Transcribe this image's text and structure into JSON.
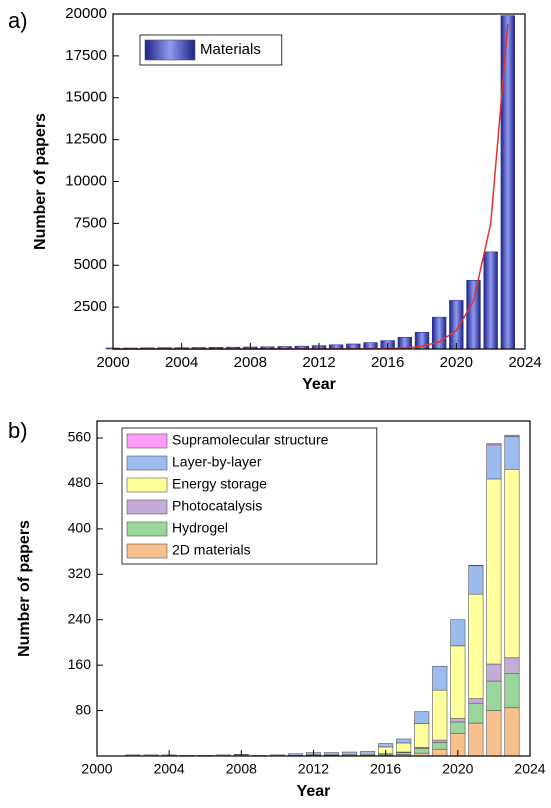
{
  "chart_data": [
    {
      "type": "bar",
      "panel_label": "a)",
      "x_label": "Year",
      "y_label": "Number of papers",
      "x": [
        2000,
        2001,
        2002,
        2003,
        2004,
        2005,
        2006,
        2007,
        2008,
        2009,
        2010,
        2011,
        2012,
        2013,
        2014,
        2015,
        2016,
        2017,
        2018,
        2019,
        2020,
        2021,
        2022,
        2023
      ],
      "series": [
        {
          "name": "Materials",
          "color": "#2b2f9e",
          "values": [
            60,
            60,
            70,
            80,
            80,
            90,
            100,
            110,
            120,
            130,
            150,
            170,
            200,
            250,
            300,
            380,
            500,
            700,
            1000,
            1900,
            2900,
            4100,
            5800,
            19900
          ]
        },
        {
          "type": "line",
          "color": "#e8312f",
          "values": [
            0,
            0,
            0,
            0,
            0,
            0,
            0,
            0,
            0,
            0,
            0,
            1,
            1,
            2,
            4,
            9,
            24,
            63,
            165,
            425,
            1100,
            2870,
            7460,
            19400
          ]
        }
      ],
      "xlim": [
        2000,
        2024
      ],
      "xticks": [
        2000,
        2004,
        2008,
        2012,
        2016,
        2020,
        2024
      ],
      "ylim": [
        0,
        20000
      ],
      "yticks": [
        2500,
        5000,
        7500,
        10000,
        12500,
        15000,
        17500,
        20000
      ]
    },
    {
      "type": "stacked_bar",
      "panel_label": "b)",
      "x_label": "Year",
      "y_label": "Number of papers",
      "x": [
        2002,
        2003,
        2004,
        2005,
        2006,
        2007,
        2008,
        2009,
        2010,
        2011,
        2012,
        2013,
        2014,
        2015,
        2016,
        2017,
        2018,
        2019,
        2020,
        2021,
        2022,
        2023
      ],
      "series": [
        {
          "name": "2D materials",
          "color": "#f8c08c",
          "values": [
            0,
            0,
            0,
            0,
            0,
            0,
            0,
            0,
            0,
            0,
            0,
            0,
            0,
            0,
            2,
            3,
            5,
            12,
            40,
            58,
            80,
            85
          ]
        },
        {
          "name": "Hydrogel",
          "color": "#9ad69a",
          "values": [
            0,
            0,
            0,
            0,
            0,
            0,
            0,
            0,
            0,
            0,
            1,
            1,
            1,
            1,
            2,
            3,
            8,
            12,
            20,
            35,
            52,
            60
          ]
        },
        {
          "name": "Photocatalysis",
          "color": "#c4acd8",
          "values": [
            0,
            0,
            0,
            0,
            0,
            0,
            0,
            0,
            0,
            0,
            0,
            0,
            0,
            0,
            0,
            1,
            2,
            4,
            6,
            8,
            30,
            28
          ]
        },
        {
          "name": "Energy storage",
          "color": "#ffff9c",
          "values": [
            0,
            0,
            0,
            0,
            0,
            0,
            2,
            0,
            0,
            1,
            1,
            1,
            2,
            2,
            12,
            16,
            42,
            88,
            128,
            184,
            326,
            332
          ]
        },
        {
          "name": "Layer-by-layer",
          "color": "#9cbcf0",
          "values": [
            2,
            2,
            2,
            1,
            1,
            2,
            1,
            1,
            2,
            3,
            4,
            4,
            4,
            5,
            6,
            7,
            21,
            42,
            46,
            50,
            60,
            58
          ]
        },
        {
          "name": "Supramolecular structure",
          "color": "#ff9cf8",
          "values": [
            0,
            0,
            0,
            0,
            0,
            0,
            0,
            0,
            0,
            0,
            0,
            0,
            0,
            0,
            0,
            0,
            0,
            0,
            0,
            1,
            2,
            2
          ]
        }
      ],
      "xlim": [
        2000,
        2024
      ],
      "xticks": [
        2000,
        2004,
        2008,
        2012,
        2016,
        2020,
        2024
      ],
      "ylim": [
        0,
        590
      ],
      "yticks": [
        80,
        160,
        240,
        320,
        400,
        480,
        560
      ]
    }
  ]
}
